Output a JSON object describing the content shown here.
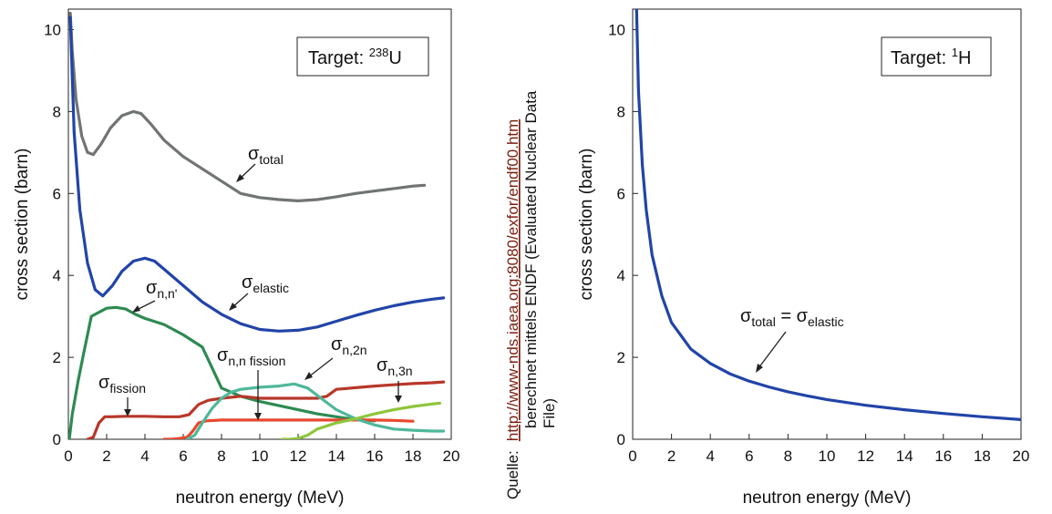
{
  "source_note": {
    "prefix": "Quelle:",
    "url": "http://www-nds.iaea.org:8080/exfor/endf00.htm",
    "line1_rest": "berechnet mittels ENDF (Evaluated Nuclear Data",
    "line2": "File)"
  },
  "colors": {
    "total": "#707472",
    "elastic": "#2244a8",
    "nn_prime": "#2e8a52",
    "fission": "#b8372a",
    "nn_fission": "#e8482e",
    "n2n": "#4fb89a",
    "n3n": "#8ec63c"
  },
  "chart_data": [
    {
      "type": "line",
      "xlabel": "neutron energy (MeV)",
      "ylabel": "cross section (barn)",
      "xlim": [
        0,
        20
      ],
      "ylim": [
        0,
        10.5
      ],
      "xticks": [
        0,
        2,
        4,
        6,
        8,
        10,
        12,
        14,
        16,
        18,
        20
      ],
      "yticks": [
        0,
        2,
        4,
        6,
        8,
        10
      ],
      "target_box": {
        "prefix": "Target: ",
        "mass": "238",
        "element": "U"
      },
      "series": [
        {
          "name": "total",
          "color_key": "total",
          "x": [
            0.1,
            0.2,
            0.4,
            0.7,
            1.0,
            1.3,
            1.7,
            2.2,
            2.8,
            3.4,
            3.8,
            4.3,
            5.0,
            6.0,
            7.0,
            8.0,
            9.0,
            10.0,
            11.0,
            12.0,
            13.0,
            14.0,
            15.0,
            16.0,
            17.0,
            18.0,
            18.6
          ],
          "y": [
            10.4,
            9.5,
            8.3,
            7.4,
            7.0,
            6.95,
            7.2,
            7.6,
            7.9,
            8.0,
            7.95,
            7.7,
            7.3,
            6.9,
            6.6,
            6.3,
            6.0,
            5.9,
            5.85,
            5.82,
            5.85,
            5.92,
            6.0,
            6.06,
            6.12,
            6.18,
            6.2
          ]
        },
        {
          "name": "elastic",
          "color_key": "elastic",
          "x": [
            0.1,
            0.3,
            0.6,
            1.0,
            1.4,
            1.8,
            2.3,
            2.8,
            3.4,
            4.0,
            4.5,
            5.0,
            6.0,
            7.0,
            8.0,
            9.0,
            10.0,
            11.0,
            12.0,
            13.0,
            14.0,
            15.0,
            16.0,
            17.0,
            18.0,
            19.0,
            19.6
          ],
          "y": [
            10.3,
            7.5,
            5.6,
            4.3,
            3.65,
            3.5,
            3.75,
            4.1,
            4.35,
            4.42,
            4.35,
            4.15,
            3.75,
            3.35,
            3.05,
            2.82,
            2.68,
            2.64,
            2.66,
            2.74,
            2.88,
            3.02,
            3.15,
            3.26,
            3.35,
            3.42,
            3.45
          ]
        },
        {
          "name": "n,n'",
          "color_key": "nn_prime",
          "x": [
            0.05,
            0.2,
            0.5,
            0.8,
            1.2,
            1.6,
            2.0,
            2.5,
            3.0,
            3.5,
            4.0,
            5.0,
            6.0,
            6.5,
            7.0,
            7.5,
            8.0,
            9.0,
            10.0,
            11.0,
            12.0,
            13.0,
            14.0,
            15.0,
            16.0
          ],
          "y": [
            0.0,
            0.6,
            1.4,
            2.1,
            3.0,
            3.1,
            3.2,
            3.22,
            3.18,
            3.05,
            2.95,
            2.8,
            2.55,
            2.4,
            2.25,
            1.75,
            1.25,
            1.05,
            0.92,
            0.82,
            0.72,
            0.62,
            0.55,
            0.48,
            0.45
          ]
        },
        {
          "name": "fission",
          "color_key": "fission",
          "x": [
            1.0,
            1.3,
            1.6,
            1.9,
            2.2,
            3.0,
            4.0,
            5.0,
            5.8,
            6.3,
            6.8,
            7.3,
            8.0,
            9.0,
            10.0,
            11.0,
            12.0,
            13.0,
            13.5,
            14.0,
            15.0,
            16.0,
            17.0,
            18.0,
            19.0,
            19.6
          ],
          "y": [
            0.0,
            0.05,
            0.4,
            0.55,
            0.55,
            0.56,
            0.56,
            0.55,
            0.55,
            0.6,
            0.85,
            0.95,
            1.0,
            1.05,
            1.0,
            1.0,
            1.0,
            1.0,
            1.05,
            1.22,
            1.26,
            1.3,
            1.33,
            1.36,
            1.38,
            1.4
          ]
        },
        {
          "name": "n,n fission",
          "color_key": "nn_fission",
          "x": [
            5.0,
            5.4,
            5.8,
            6.2,
            6.5,
            6.8,
            7.2,
            8.0,
            10.0,
            12.0,
            14.0,
            16.0,
            17.0,
            18.0
          ],
          "y": [
            0.0,
            0.0,
            0.02,
            0.05,
            0.2,
            0.4,
            0.45,
            0.47,
            0.47,
            0.47,
            0.47,
            0.47,
            0.46,
            0.44
          ]
        },
        {
          "name": "n,2n",
          "color_key": "n2n",
          "x": [
            6.2,
            6.6,
            7.0,
            7.5,
            8.0,
            8.5,
            9.0,
            10.0,
            11.0,
            11.8,
            12.5,
            13.2,
            14.0,
            15.0,
            16.0,
            17.0,
            18.0,
            19.0,
            19.6
          ],
          "y": [
            0.0,
            0.1,
            0.4,
            0.75,
            1.0,
            1.15,
            1.22,
            1.27,
            1.3,
            1.35,
            1.25,
            1.0,
            0.72,
            0.5,
            0.35,
            0.25,
            0.22,
            0.2,
            0.2
          ]
        },
        {
          "name": "n,3n",
          "color_key": "n3n",
          "x": [
            11.2,
            11.6,
            12.0,
            12.5,
            13.0,
            14.0,
            15.0,
            16.0,
            17.0,
            18.0,
            19.0,
            19.4
          ],
          "y": [
            0.0,
            0.0,
            0.02,
            0.1,
            0.25,
            0.4,
            0.5,
            0.62,
            0.72,
            0.8,
            0.86,
            0.88
          ]
        }
      ]
    },
    {
      "type": "line",
      "xlabel": "neutron energy (MeV)",
      "ylabel": "cross section (barn)",
      "xlim": [
        0,
        20
      ],
      "ylim": [
        0,
        10.5
      ],
      "xticks": [
        0,
        2,
        4,
        6,
        8,
        10,
        12,
        14,
        16,
        18,
        20
      ],
      "yticks": [
        0,
        2,
        4,
        6,
        8,
        10
      ],
      "target_box": {
        "prefix": "Target: ",
        "mass": "1",
        "element": "H"
      },
      "series": [
        {
          "name": "total = elastic",
          "color_key": "elastic",
          "x": [
            0.2,
            0.3,
            0.5,
            0.7,
            1.0,
            1.5,
            2.0,
            3.0,
            4.0,
            5.0,
            6.0,
            7.0,
            8.0,
            9.0,
            10.0,
            12.0,
            14.0,
            16.0,
            18.0,
            20.0
          ],
          "y": [
            10.5,
            8.5,
            6.7,
            5.6,
            4.5,
            3.5,
            2.85,
            2.2,
            1.85,
            1.6,
            1.42,
            1.28,
            1.16,
            1.06,
            0.97,
            0.83,
            0.72,
            0.63,
            0.55,
            0.48
          ]
        }
      ]
    }
  ],
  "annotations": {
    "left": {
      "total": {
        "base": "σ",
        "sub": "total"
      },
      "elastic": {
        "base": "σ",
        "sub": "elastic"
      },
      "nn_prime": {
        "base": "σ",
        "sub": "n,n'"
      },
      "fission": {
        "base": "σ",
        "sub": "fission"
      },
      "nn_fission": {
        "base": "σ",
        "sub": "n,n fission"
      },
      "n2n": {
        "base": "σ",
        "sub": "n,2n"
      },
      "n3n": {
        "base": "σ",
        "sub": "n,3n"
      }
    },
    "right": {
      "total_eq_elastic": {
        "base1": "σ",
        "sub1": "total",
        "eq": " = ",
        "base2": "σ",
        "sub2": "elastic"
      }
    }
  }
}
